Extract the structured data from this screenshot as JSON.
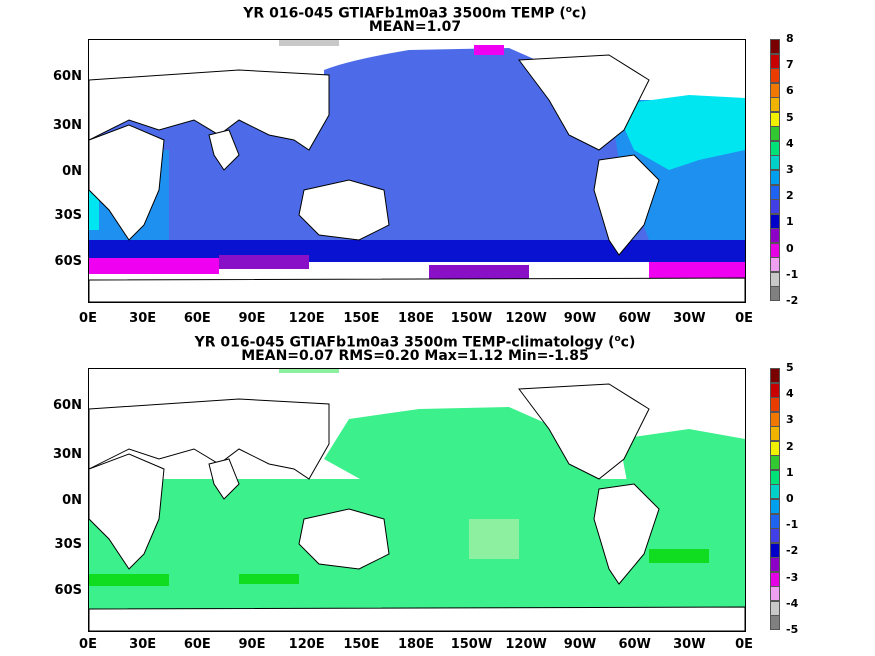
{
  "panels": [
    {
      "title_line1": "YR 016-045 GTIAFb1m0a3 3500m TEMP (",
      "title_sup": "o",
      "title_line1_end": "c)",
      "title_line2": "MEAN=1.07",
      "colorbar": {
        "labels": [
          "8",
          "7",
          "6",
          "5",
          "4",
          "3",
          "2",
          "1",
          "0",
          "-1",
          "-2"
        ],
        "colors": [
          "#7a0000",
          "#c80000",
          "#e83c00",
          "#f07800",
          "#f0b400",
          "#f0f000",
          "#32c832",
          "#00e178",
          "#00d2c8",
          "#00a0f0",
          "#1e64f0",
          "#4040e6",
          "#0000c8",
          "#8c00c8",
          "#e600e6",
          "#f0a0f0",
          "#c8c8c8",
          "#808080"
        ]
      }
    },
    {
      "title_line1": "YR 016-045 GTIAFb1m0a3 3500m TEMP-climatology (",
      "title_sup": "o",
      "title_line1_end": "c)",
      "title_line2": "MEAN=0.07   RMS=0.20   Max=1.12   Min=-1.85",
      "colorbar": {
        "labels": [
          "5",
          "4",
          "3",
          "2",
          "1",
          "0",
          "-1",
          "-2",
          "-3",
          "-4",
          "-5"
        ],
        "colors": [
          "#7a0000",
          "#c80000",
          "#e83c00",
          "#f07800",
          "#f0b400",
          "#f0f000",
          "#32c832",
          "#00e178",
          "#00d2c8",
          "#00a0f0",
          "#1e64f0",
          "#4040e6",
          "#0000c8",
          "#8c00c8",
          "#e600e6",
          "#f0a0f0",
          "#c8c8c8",
          "#808080"
        ]
      }
    }
  ],
  "lat_labels": [
    "60N",
    "30N",
    "0N",
    "30S",
    "60S"
  ],
  "lon_labels": [
    "0E",
    "30E",
    "60E",
    "90E",
    "120E",
    "150E",
    "180E",
    "150W",
    "120W",
    "90W",
    "60W",
    "30W",
    "0E"
  ],
  "field_colors": {
    "top": {
      "main": "#4d6be8",
      "warm": "#1e90f0",
      "cyan": "#00e6f0",
      "south": "#0a12d2",
      "purple": "#8a10c8",
      "magenta": "#f000f0",
      "green": "#32dc32"
    },
    "bottom": {
      "main": "#3cf08c",
      "light": "#8cf0a0",
      "dark": "#10dc20",
      "cyan": "#00f0c0"
    }
  }
}
